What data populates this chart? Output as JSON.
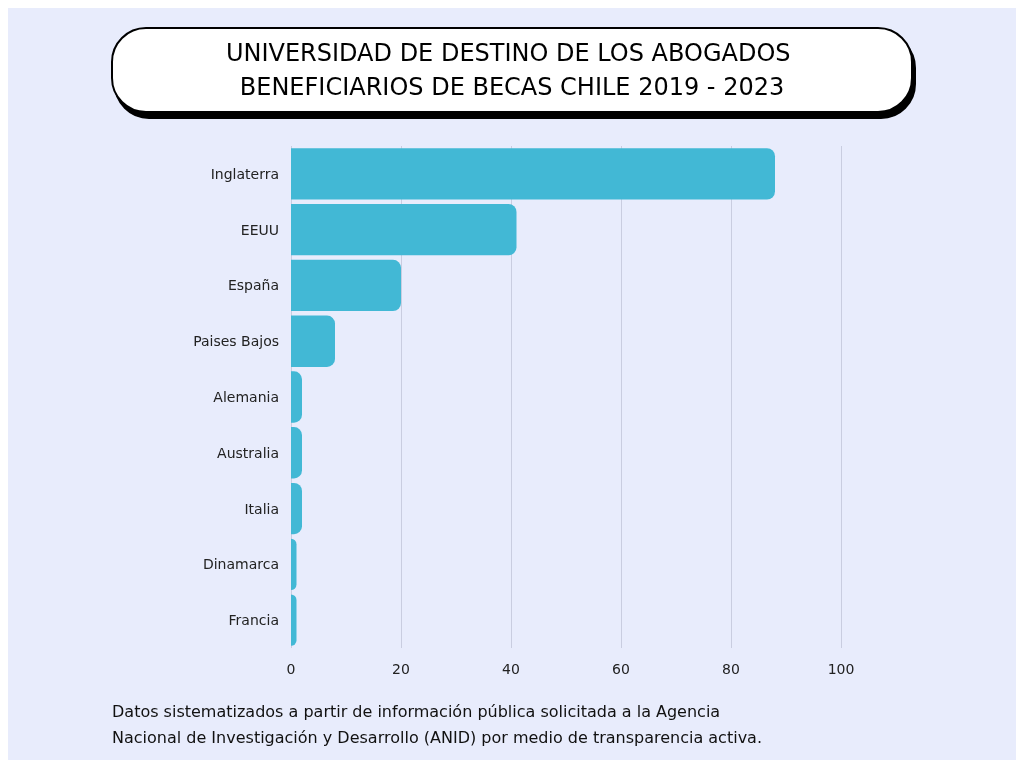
{
  "chart_data": {
    "type": "bar",
    "orientation": "horizontal",
    "title": "UNIVERSIDAD DE DESTINO DE LOS ABOGADOS BENEFICIARIOS DE BECAS CHILE 2019 - 2023",
    "categories": [
      "Inglaterra",
      "EEUU",
      "España",
      "Paises Bajos",
      "Alemania",
      "Australia",
      "Italia",
      "Dinamarca",
      "Francia"
    ],
    "values": [
      88,
      41,
      20,
      8,
      2,
      2,
      2,
      1,
      1
    ],
    "color": "#42b8d5",
    "xlim": [
      0,
      100
    ],
    "xticks": [
      0,
      20,
      40,
      60,
      80,
      100
    ],
    "grid": "x",
    "annotations": [
      "Datos sistematizados a partir de información pública solicitada a la Agencia Nacional de Investigación y Desarrollo (ANID) por medio de transparencia activa."
    ]
  }
}
